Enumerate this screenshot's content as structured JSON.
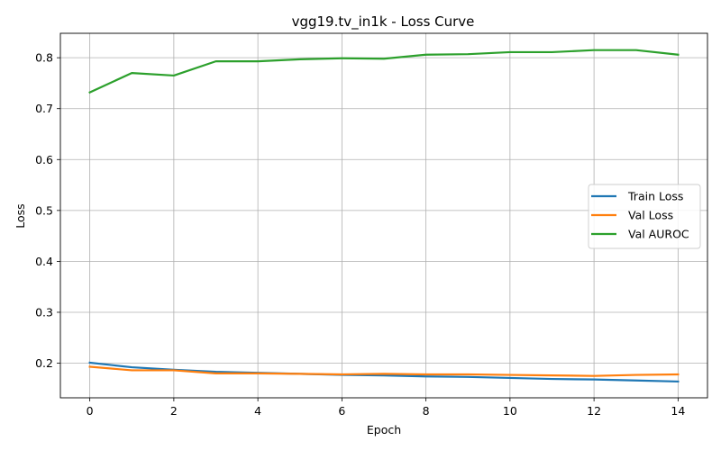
{
  "chart_data": {
    "type": "line",
    "title": "vgg19.tv_in1k - Loss Curve",
    "xlabel": "Epoch",
    "ylabel": "Loss",
    "x": [
      0,
      1,
      2,
      3,
      4,
      5,
      6,
      7,
      8,
      9,
      10,
      11,
      12,
      13,
      14
    ],
    "xticks": [
      0,
      2,
      4,
      6,
      8,
      10,
      12,
      14
    ],
    "yticks": [
      0.2,
      0.3,
      0.4,
      0.5,
      0.6,
      0.7,
      0.8
    ],
    "xlim": [
      -0.7,
      14.7
    ],
    "ylim": [
      0.132,
      0.848
    ],
    "grid": true,
    "legend_position": "center-right",
    "series": [
      {
        "name": "Train Loss",
        "color": "#1f77b4",
        "values": [
          0.201,
          0.192,
          0.187,
          0.183,
          0.181,
          0.179,
          0.177,
          0.176,
          0.174,
          0.173,
          0.171,
          0.169,
          0.168,
          0.166,
          0.164
        ]
      },
      {
        "name": "Val Loss",
        "color": "#ff7f0e",
        "values": [
          0.193,
          0.186,
          0.186,
          0.18,
          0.18,
          0.179,
          0.178,
          0.179,
          0.178,
          0.178,
          0.177,
          0.176,
          0.175,
          0.177,
          0.178
        ]
      },
      {
        "name": "Val AUROC",
        "color": "#2ca02c",
        "values": [
          0.732,
          0.77,
          0.765,
          0.793,
          0.793,
          0.797,
          0.799,
          0.798,
          0.806,
          0.807,
          0.811,
          0.811,
          0.815,
          0.815,
          0.806
        ]
      }
    ]
  }
}
